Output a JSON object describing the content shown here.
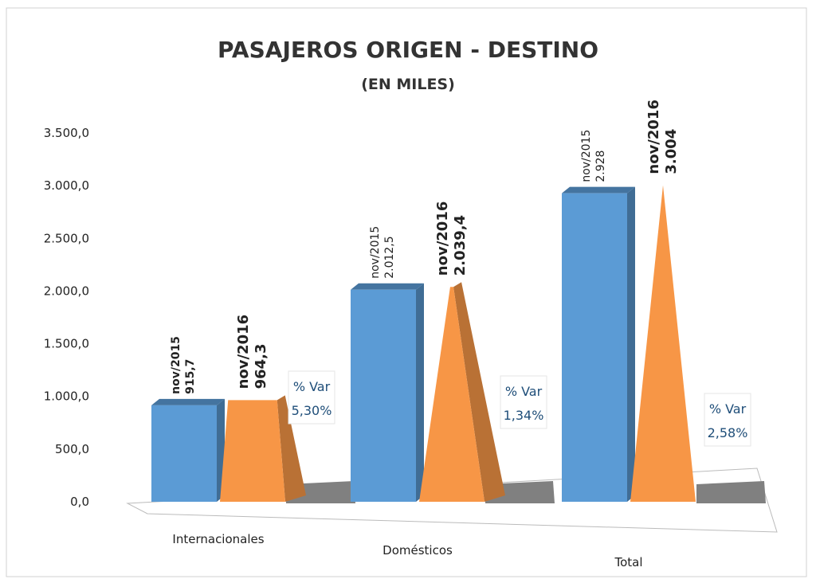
{
  "chart_data": {
    "type": "bar3d",
    "title": "PASAJEROS ORIGEN - DESTINO",
    "subtitle": "(EN MILES)",
    "categories": [
      "Internacionales",
      "Domésticos",
      "Total"
    ],
    "series": [
      {
        "name": "nov/2015",
        "color": "#5b9bd5",
        "values": [
          915.7,
          2012.5,
          2928
        ],
        "value_labels": [
          "915,7",
          "2.012,5",
          "2.928"
        ]
      },
      {
        "name": "nov/2016",
        "color": "#f79646",
        "values": [
          964.3,
          2039.4,
          3004
        ],
        "value_labels": [
          "964,3",
          "2.039,4",
          "3.004"
        ]
      }
    ],
    "variation": {
      "label": "% Var",
      "values": [
        5.3,
        1.34,
        2.58
      ],
      "value_labels": [
        "5,30%",
        "1,34%",
        "2,58%"
      ]
    },
    "ylim": [
      0,
      3500
    ],
    "yticks": [
      {
        "value": 0,
        "label": "0,0"
      },
      {
        "value": 500,
        "label": "500,0"
      },
      {
        "value": 1000,
        "label": "1.000,0"
      },
      {
        "value": 1500,
        "label": "1.500,0"
      },
      {
        "value": 2000,
        "label": "2.000,0"
      },
      {
        "value": 2500,
        "label": "2.500,0"
      },
      {
        "value": 3000,
        "label": "3.000,0"
      },
      {
        "value": 3500,
        "label": "3.500,0"
      }
    ],
    "grid": false
  }
}
